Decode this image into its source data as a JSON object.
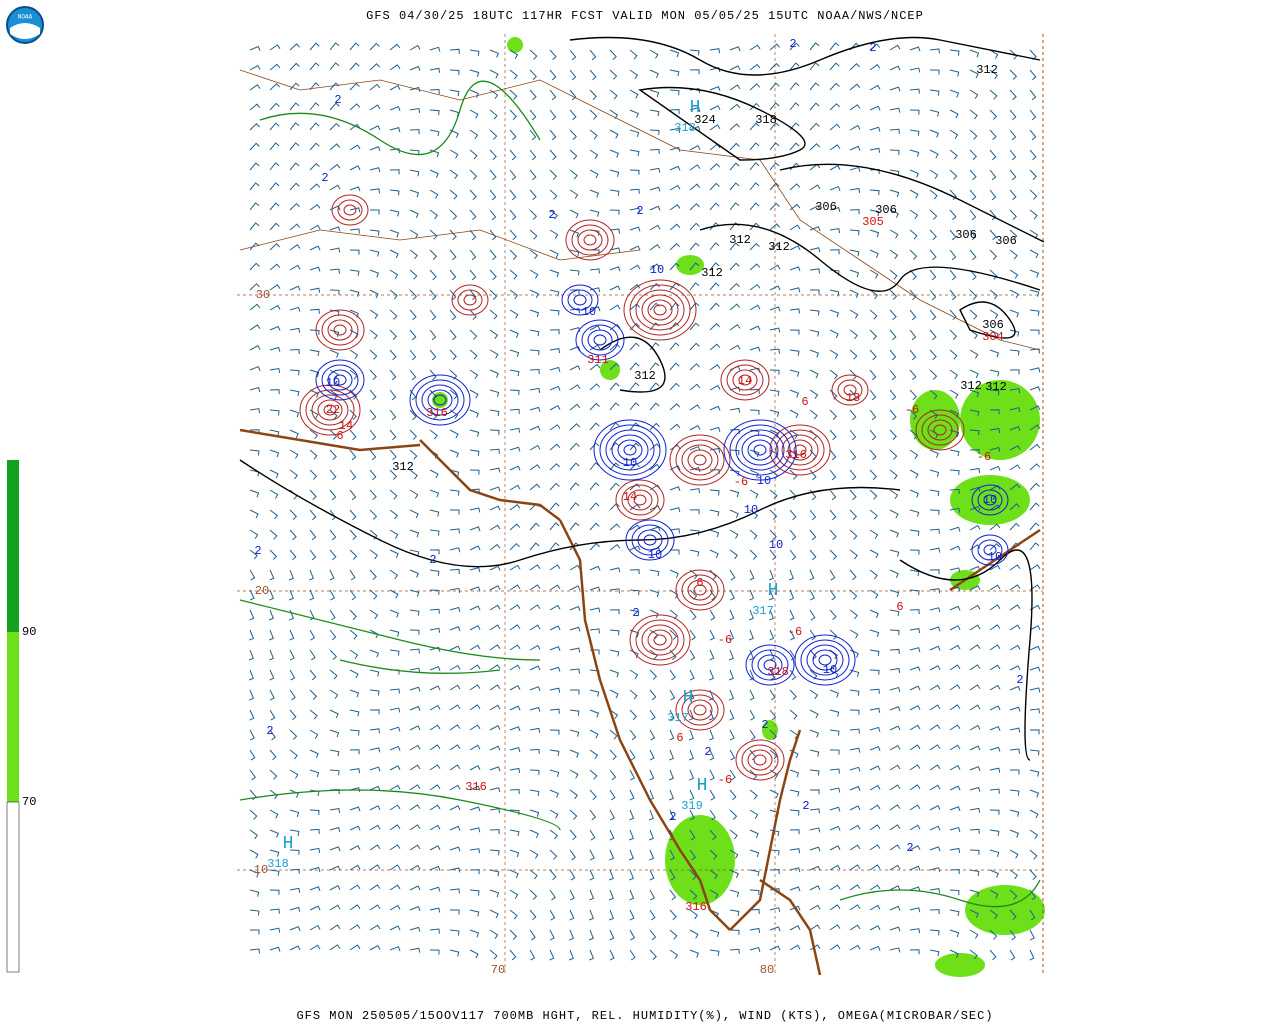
{
  "header": {
    "title": "GFS 04/30/25 18UTC 117HR FCST VALID MON 05/05/25 15UTC NOAA/NWS/NCEP",
    "logo": "NOAA"
  },
  "footer": {
    "caption": "GFS MON 250505/15OOV117 700MB HGHT, REL. HUMIDITY(%), WIND (KTS), OMEGA(MICROBAR/SEC)"
  },
  "colorbar": {
    "labels": [
      "90",
      "70"
    ]
  },
  "map": {
    "grid_labels": [
      "30",
      "20",
      "10",
      "70",
      "80"
    ],
    "height_labels": [
      "312",
      "324",
      "318",
      "306",
      "306",
      "306",
      "306",
      "312",
      "312",
      "312",
      "306",
      "312",
      "312",
      "312",
      "312"
    ],
    "red_labels": [
      "305",
      "304",
      "311",
      "316",
      "22",
      "14",
      "6",
      "14",
      "13",
      "-6",
      "6",
      "316",
      "-6",
      "14",
      "318",
      "316",
      "316",
      "-6",
      "6",
      "-6",
      "6",
      "-6",
      "6",
      "-6"
    ],
    "blue_labels": [
      "2",
      "2",
      "2",
      "2",
      "2",
      "2",
      "10",
      "10",
      "10",
      "10",
      "10",
      "10",
      "10",
      "10",
      "10",
      "10",
      "10",
      "2",
      "2",
      "2",
      "2",
      "2",
      "2",
      "2",
      "2",
      "2",
      "2"
    ],
    "high_centers": [
      {
        "mark": "H",
        "value": "318"
      },
      {
        "mark": "H",
        "value": "317"
      },
      {
        "mark": "H",
        "value": "317"
      },
      {
        "mark": "H",
        "value": "319"
      },
      {
        "mark": "H",
        "value": "318"
      }
    ]
  }
}
